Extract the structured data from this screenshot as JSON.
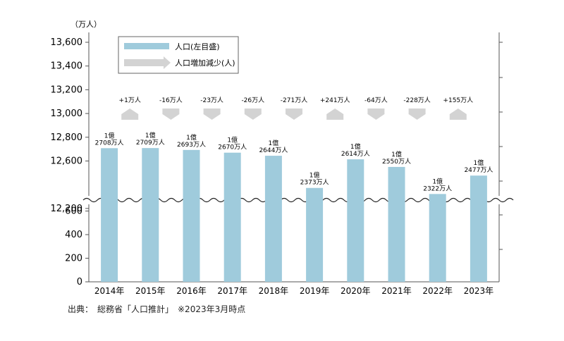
{
  "chart_data": {
    "type": "bar",
    "unit_label": "（万人）",
    "categories": [
      "2014年",
      "2015年",
      "2016年",
      "2017年",
      "2018年",
      "2019年",
      "2020年",
      "2021年",
      "2022年",
      "2023年"
    ],
    "series": [
      {
        "name": "人口(左目盛)",
        "values": [
          12708,
          12709,
          12693,
          12670,
          12644,
          12373,
          12614,
          12550,
          12322,
          12477
        ]
      }
    ],
    "bar_labels": [
      {
        "line1": "1億",
        "line2": "2708万人"
      },
      {
        "line1": "1億",
        "line2": "2709万人"
      },
      {
        "line1": "1億",
        "line2": "2693万人"
      },
      {
        "line1": "1億",
        "line2": "2670万人"
      },
      {
        "line1": "1億",
        "line2": "2644万人"
      },
      {
        "line1": "1億",
        "line2": "2373万人"
      },
      {
        "line1": "1億",
        "line2": "2614万人"
      },
      {
        "line1": "1億",
        "line2": "2550万人"
      },
      {
        "line1": "1億",
        "line2": "2322万人"
      },
      {
        "line1": "1億",
        "line2": "2477万人"
      }
    ],
    "change": {
      "name": "人口増加減少(人)",
      "labels": [
        "+1万人",
        "-16万人",
        "-23万人",
        "-26万人",
        "-271万人",
        "+241万人",
        "-64万人",
        "-228万人",
        "+155万人"
      ],
      "directions": [
        "up",
        "down",
        "down",
        "down",
        "down",
        "up",
        "down",
        "down",
        "up"
      ]
    },
    "y_ticks_upper": [
      "13,600",
      "13,400",
      "13,200",
      "13,000",
      "12,800",
      "12,600",
      "12,200"
    ],
    "y_ticks_lower": [
      "600",
      "400",
      "200",
      "0"
    ],
    "ylim_upper": [
      12100,
      13600
    ],
    "ylim_lower": [
      0,
      600
    ],
    "axis_break": true,
    "grid": false,
    "legend_position": "top-left",
    "colors": {
      "bar": "#9fcbdc",
      "arrow": "#d3d3d3",
      "axis": "#555555"
    }
  },
  "source": "出典：　総務省「人口推計」　※2023年3月時点"
}
